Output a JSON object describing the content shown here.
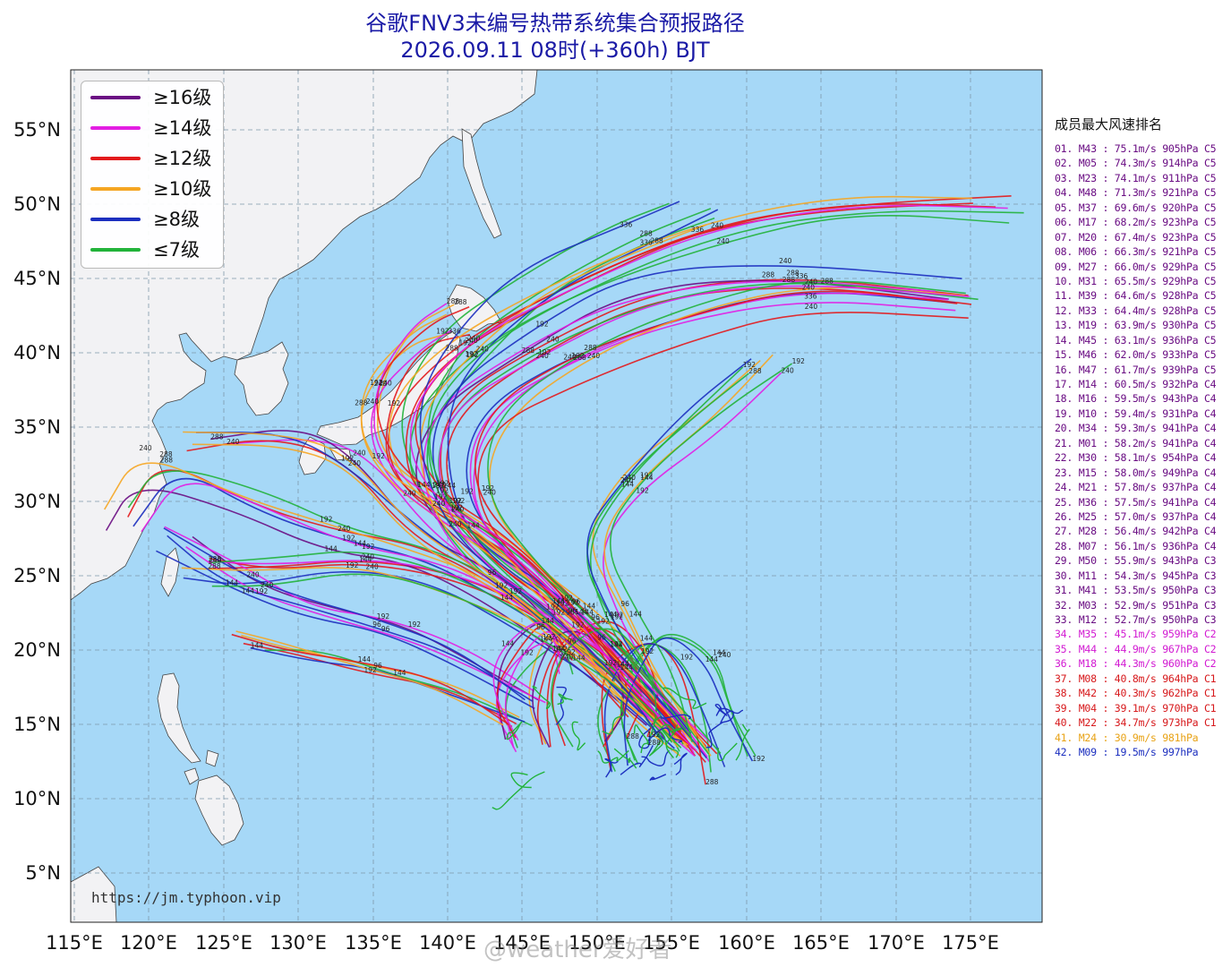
{
  "title_line1": "谷歌FNV3未编号热带系统集合预报路径",
  "title_line2": "2026.09.11 08时(+360h) BJT",
  "map": {
    "lat_ticks": [
      "55°N",
      "50°N",
      "45°N",
      "40°N",
      "35°N",
      "30°N",
      "25°N",
      "20°N",
      "15°N",
      "10°N",
      "5°N"
    ],
    "lon_ticks": [
      "115°E",
      "120°E",
      "125°E",
      "130°E",
      "135°E",
      "140°E",
      "145°E",
      "150°E",
      "155°E",
      "160°E",
      "165°E",
      "170°E",
      "175°E"
    ],
    "colors": {
      "ocean": "#a6d8f7",
      "land": "#f2f2f4",
      "border": "#444444",
      "grid": "#8a9fb0"
    }
  },
  "legend": [
    {
      "label": "≥16级",
      "color": "#6a0d83"
    },
    {
      "label": "≥14级",
      "color": "#e31ee3"
    },
    {
      "label": "≥12级",
      "color": "#e31a1c"
    },
    {
      "label": "≥10级",
      "color": "#f5a623"
    },
    {
      "label": "≥8级",
      "color": "#1c2fbf"
    },
    {
      "label": "≤7级",
      "color": "#22b33a"
    }
  ],
  "source_text": "https://jm.typhoon.vip",
  "ranking_title": "成员最大风速排名",
  "ranking": [
    {
      "text": "01. M43 : 75.1m/s 905hPa C5",
      "color": "#6a0d83"
    },
    {
      "text": "02. M05 : 74.3m/s 914hPa C5",
      "color": "#6a0d83"
    },
    {
      "text": "03. M23 : 74.1m/s 911hPa C5",
      "color": "#6a0d83"
    },
    {
      "text": "04. M48 : 71.3m/s 921hPa C5",
      "color": "#6a0d83"
    },
    {
      "text": "05. M37 : 69.6m/s 920hPa C5",
      "color": "#6a0d83"
    },
    {
      "text": "06. M17 : 68.2m/s 923hPa C5",
      "color": "#6a0d83"
    },
    {
      "text": "07. M20 : 67.4m/s 923hPa C5",
      "color": "#6a0d83"
    },
    {
      "text": "08. M06 : 66.3m/s 921hPa C5",
      "color": "#6a0d83"
    },
    {
      "text": "09. M27 : 66.0m/s 929hPa C5",
      "color": "#6a0d83"
    },
    {
      "text": "10. M31 : 65.5m/s 929hPa C5",
      "color": "#6a0d83"
    },
    {
      "text": "11. M39 : 64.6m/s 928hPa C5",
      "color": "#6a0d83"
    },
    {
      "text": "12. M33 : 64.4m/s 928hPa C5",
      "color": "#6a0d83"
    },
    {
      "text": "13. M19 : 63.9m/s 930hPa C5",
      "color": "#6a0d83"
    },
    {
      "text": "14. M45 : 63.1m/s 936hPa C5",
      "color": "#6a0d83"
    },
    {
      "text": "15. M46 : 62.0m/s 933hPa C5",
      "color": "#6a0d83"
    },
    {
      "text": "16. M47 : 61.7m/s 939hPa C5",
      "color": "#6a0d83"
    },
    {
      "text": "17. M14 : 60.5m/s 932hPa C4",
      "color": "#6a0d83"
    },
    {
      "text": "18. M16 : 59.5m/s 943hPa C4",
      "color": "#6a0d83"
    },
    {
      "text": "19. M10 : 59.4m/s 931hPa C4",
      "color": "#6a0d83"
    },
    {
      "text": "20. M34 : 59.3m/s 941hPa C4",
      "color": "#6a0d83"
    },
    {
      "text": "21. M01 : 58.2m/s 941hPa C4",
      "color": "#6a0d83"
    },
    {
      "text": "22. M30 : 58.1m/s 954hPa C4",
      "color": "#6a0d83"
    },
    {
      "text": "23. M15 : 58.0m/s 949hPa C4",
      "color": "#6a0d83"
    },
    {
      "text": "24. M21 : 57.8m/s 937hPa C4",
      "color": "#6a0d83"
    },
    {
      "text": "25. M36 : 57.5m/s 941hPa C4",
      "color": "#6a0d83"
    },
    {
      "text": "26. M25 : 57.0m/s 937hPa C4",
      "color": "#6a0d83"
    },
    {
      "text": "27. M28 : 56.4m/s 942hPa C4",
      "color": "#6a0d83"
    },
    {
      "text": "28. M07 : 56.1m/s 936hPa C4",
      "color": "#6a0d83"
    },
    {
      "text": "29. M50 : 55.9m/s 943hPa C3",
      "color": "#6a0d83"
    },
    {
      "text": "30. M11 : 54.3m/s 945hPa C3",
      "color": "#6a0d83"
    },
    {
      "text": "31. M41 : 53.5m/s 950hPa C3",
      "color": "#6a0d83"
    },
    {
      "text": "32. M03 : 52.9m/s 951hPa C3",
      "color": "#6a0d83"
    },
    {
      "text": "33. M12 : 52.7m/s 950hPa C3",
      "color": "#6a0d83"
    },
    {
      "text": "34. M35 : 45.1m/s 959hPa C2",
      "color": "#d21ad2"
    },
    {
      "text": "35. M44 : 44.9m/s 967hPa C2",
      "color": "#d21ad2"
    },
    {
      "text": "36. M18 : 44.3m/s 960hPa C2",
      "color": "#d21ad2"
    },
    {
      "text": "37. M08 : 40.8m/s 964hPa C1",
      "color": "#d7191c"
    },
    {
      "text": "38. M42 : 40.3m/s 962hPa C1",
      "color": "#d7191c"
    },
    {
      "text": "39. M04 : 39.1m/s 970hPa C1",
      "color": "#d7191c"
    },
    {
      "text": "40. M22 : 34.7m/s 973hPa C1",
      "color": "#d7191c"
    },
    {
      "text": "41. M24 : 30.9m/s 981hPa",
      "color": "#e8a317"
    },
    {
      "text": "42. M09 : 19.5m/s 997hPa",
      "color": "#1c2fbf"
    }
  ],
  "watermark": "@weather爱好者"
}
